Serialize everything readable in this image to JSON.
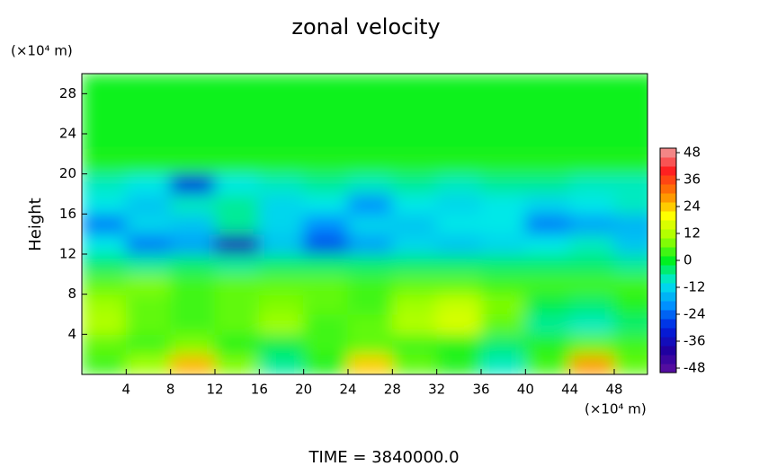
{
  "chart_data": {
    "type": "contour",
    "title": "zonal velocity",
    "ylabel": "Height",
    "x_unit_label": "(×10⁴ m)",
    "y_unit_label": "(×10⁴ m)",
    "footer": "TIME = 3840000.0",
    "x": [
      2,
      6,
      10,
      14,
      18,
      22,
      26,
      30,
      34,
      38,
      42,
      46,
      50
    ],
    "y": [
      1,
      3,
      5,
      7,
      9,
      11,
      13,
      15,
      17,
      19,
      21,
      23,
      25,
      27,
      29
    ],
    "z": [
      [
        4,
        10,
        26,
        8,
        -6,
        2,
        24,
        6,
        2,
        -8,
        4,
        28,
        6
      ],
      [
        6,
        4,
        8,
        2,
        -2,
        4,
        6,
        4,
        2,
        -4,
        2,
        6,
        4
      ],
      [
        12,
        6,
        4,
        6,
        10,
        4,
        6,
        12,
        16,
        6,
        -6,
        -8,
        -4
      ],
      [
        10,
        6,
        4,
        6,
        8,
        6,
        4,
        10,
        14,
        8,
        -2,
        -4,
        2
      ],
      [
        6,
        8,
        4,
        6,
        6,
        6,
        4,
        6,
        6,
        4,
        4,
        4,
        4
      ],
      [
        -4,
        -6,
        -4,
        -6,
        -4,
        -4,
        -4,
        -4,
        -4,
        -4,
        -4,
        -4,
        -6
      ],
      [
        -10,
        -22,
        -18,
        -36,
        -14,
        -26,
        -18,
        -12,
        -14,
        -12,
        -10,
        -8,
        -14
      ],
      [
        -22,
        -12,
        -14,
        -6,
        -12,
        -20,
        -12,
        -14,
        -10,
        -10,
        -22,
        -18,
        -16
      ],
      [
        -10,
        -14,
        -8,
        -6,
        -12,
        -10,
        -20,
        -10,
        -12,
        -10,
        -12,
        -10,
        -8
      ],
      [
        -8,
        -10,
        -30,
        -10,
        -8,
        -6,
        -8,
        -6,
        -8,
        -6,
        -6,
        -8,
        -8
      ],
      [
        2,
        2,
        2,
        2,
        2,
        2,
        2,
        2,
        2,
        2,
        2,
        2,
        2
      ],
      [
        1,
        1,
        1,
        1,
        1,
        1,
        1,
        1,
        1,
        1,
        1,
        1,
        1
      ],
      [
        1,
        1,
        1,
        1,
        1,
        1,
        1,
        1,
        1,
        1,
        1,
        1,
        1
      ],
      [
        1,
        1,
        1,
        1,
        1,
        1,
        1,
        1,
        1,
        1,
        1,
        1,
        1
      ],
      [
        1,
        1,
        1,
        1,
        1,
        1,
        1,
        1,
        1,
        1,
        1,
        1,
        1
      ]
    ],
    "xlim": [
      0,
      51
    ],
    "ylim": [
      0,
      30
    ],
    "xticks": [
      4,
      8,
      12,
      16,
      20,
      24,
      28,
      32,
      36,
      40,
      44,
      48
    ],
    "yticks": [
      4,
      8,
      12,
      16,
      20,
      24,
      28
    ],
    "clim": [
      -50,
      50
    ],
    "cticks": [
      -48,
      -36,
      -24,
      -12,
      0,
      12,
      24,
      36,
      48
    ],
    "colormap": [
      "#6010a0",
      "#2000a0",
      "#0020e0",
      "#0090ff",
      "#00e8e8",
      "#00f020",
      "#a0ff00",
      "#ffff00",
      "#ff8000",
      "#ff2020",
      "#f0a0a0"
    ]
  }
}
